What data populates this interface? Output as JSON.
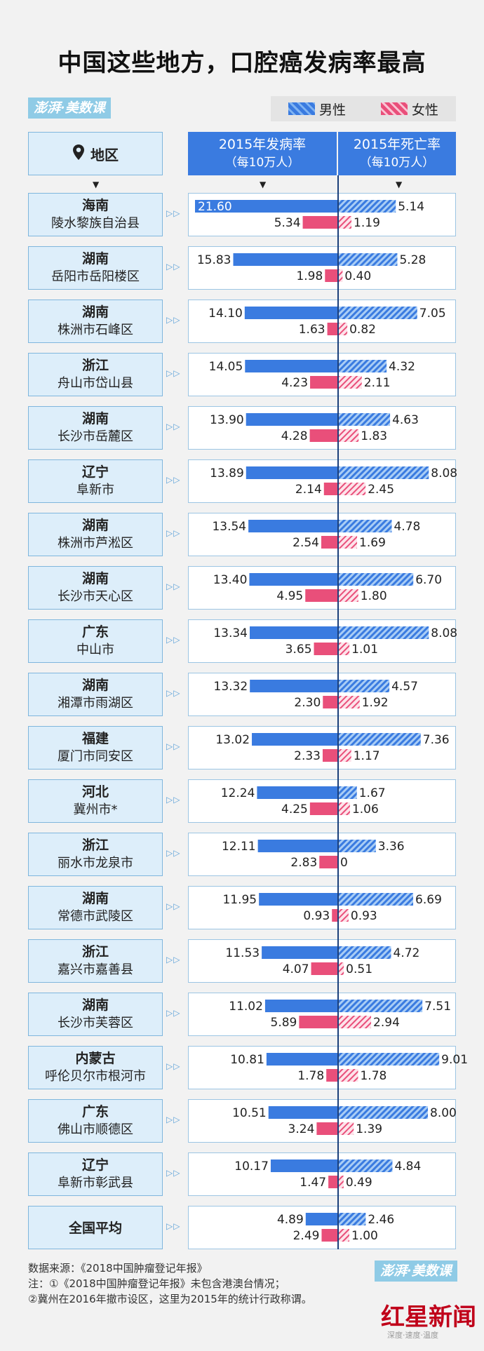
{
  "title": "中国这些地方，口腔癌发病率最高",
  "brand": "澎湃·美数课",
  "legend": {
    "male": "男性",
    "female": "女性"
  },
  "header": {
    "region": "地区",
    "incidence": "2015年发病率",
    "incidence_unit": "（每10万人）",
    "mortality": "2015年死亡率",
    "mortality_unit": "（每10万人）"
  },
  "colors": {
    "male": "#3a7be0",
    "female": "#e94f7a",
    "header_bg": "#3a7be0",
    "region_bg": "#ddeefa"
  },
  "chart_data": {
    "type": "bar",
    "title": "中国这些地方，口腔癌发病率最高",
    "series": [
      {
        "name": "2015年发病率 男性"
      },
      {
        "name": "2015年发病率 女性"
      },
      {
        "name": "2015年死亡率 男性"
      },
      {
        "name": "2015年死亡率 女性"
      }
    ],
    "rows": [
      {
        "province": "海南",
        "city": "陵水黎族自治县",
        "inc_m": 21.6,
        "inc_f": 5.34,
        "mort_m": 5.14,
        "mort_f": 1.19,
        "inc_m_label": "21.60",
        "inc_f_label": "5.34",
        "mort_m_label": "5.14",
        "mort_f_label": "1.19"
      },
      {
        "province": "湖南",
        "city": "岳阳市岳阳楼区",
        "inc_m": 15.83,
        "inc_f": 1.98,
        "mort_m": 5.28,
        "mort_f": 0.4,
        "inc_m_label": "15.83",
        "inc_f_label": "1.98",
        "mort_m_label": "5.28",
        "mort_f_label": "0.40"
      },
      {
        "province": "湖南",
        "city": "株洲市石峰区",
        "inc_m": 14.1,
        "inc_f": 1.63,
        "mort_m": 7.05,
        "mort_f": 0.82,
        "inc_m_label": "14.10",
        "inc_f_label": "1.63",
        "mort_m_label": "7.05",
        "mort_f_label": "0.82"
      },
      {
        "province": "浙江",
        "city": "舟山市岱山县",
        "inc_m": 14.05,
        "inc_f": 4.23,
        "mort_m": 4.32,
        "mort_f": 2.11,
        "inc_m_label": "14.05",
        "inc_f_label": "4.23",
        "mort_m_label": "4.32",
        "mort_f_label": "2.11"
      },
      {
        "province": "湖南",
        "city": "长沙市岳麓区",
        "inc_m": 13.9,
        "inc_f": 4.28,
        "mort_m": 4.63,
        "mort_f": 1.83,
        "inc_m_label": "13.90",
        "inc_f_label": "4.28",
        "mort_m_label": "4.63",
        "mort_f_label": "1.83"
      },
      {
        "province": "辽宁",
        "city": "阜新市",
        "inc_m": 13.89,
        "inc_f": 2.14,
        "mort_m": 8.08,
        "mort_f": 2.45,
        "inc_m_label": "13.89",
        "inc_f_label": "2.14",
        "mort_m_label": "8.08",
        "mort_f_label": "2.45"
      },
      {
        "province": "湖南",
        "city": "株洲市芦淞区",
        "inc_m": 13.54,
        "inc_f": 2.54,
        "mort_m": 4.78,
        "mort_f": 1.69,
        "inc_m_label": "13.54",
        "inc_f_label": "2.54",
        "mort_m_label": "4.78",
        "mort_f_label": "1.69"
      },
      {
        "province": "湖南",
        "city": "长沙市天心区",
        "inc_m": 13.4,
        "inc_f": 4.95,
        "mort_m": 6.7,
        "mort_f": 1.8,
        "inc_m_label": "13.40",
        "inc_f_label": "4.95",
        "mort_m_label": "6.70",
        "mort_f_label": "1.80"
      },
      {
        "province": "广东",
        "city": "中山市",
        "inc_m": 13.34,
        "inc_f": 3.65,
        "mort_m": 8.08,
        "mort_f": 1.01,
        "inc_m_label": "13.34",
        "inc_f_label": "3.65",
        "mort_m_label": "8.08",
        "mort_f_label": "1.01"
      },
      {
        "province": "湖南",
        "city": "湘潭市雨湖区",
        "inc_m": 13.32,
        "inc_f": 2.3,
        "mort_m": 4.57,
        "mort_f": 1.92,
        "inc_m_label": "13.32",
        "inc_f_label": "2.30",
        "mort_m_label": "4.57",
        "mort_f_label": "1.92"
      },
      {
        "province": "福建",
        "city": "厦门市同安区",
        "inc_m": 13.02,
        "inc_f": 2.33,
        "mort_m": 7.36,
        "mort_f": 1.17,
        "inc_m_label": "13.02",
        "inc_f_label": "2.33",
        "mort_m_label": "7.36",
        "mort_f_label": "1.17"
      },
      {
        "province": "河北",
        "city": "冀州市*",
        "inc_m": 12.24,
        "inc_f": 4.25,
        "mort_m": 1.67,
        "mort_f": 1.06,
        "inc_m_label": "12.24",
        "inc_f_label": "4.25",
        "mort_m_label": "1.67",
        "mort_f_label": "1.06"
      },
      {
        "province": "浙江",
        "city": "丽水市龙泉市",
        "inc_m": 12.11,
        "inc_f": 2.83,
        "mort_m": 3.36,
        "mort_f": 0,
        "inc_m_label": "12.11",
        "inc_f_label": "2.83",
        "mort_m_label": "3.36",
        "mort_f_label": "0"
      },
      {
        "province": "湖南",
        "city": "常德市武陵区",
        "inc_m": 11.95,
        "inc_f": 0.93,
        "mort_m": 6.69,
        "mort_f": 0.93,
        "inc_m_label": "11.95",
        "inc_f_label": "0.93",
        "mort_m_label": "6.69",
        "mort_f_label": "0.93"
      },
      {
        "province": "浙江",
        "city": "嘉兴市嘉善县",
        "inc_m": 11.53,
        "inc_f": 4.07,
        "mort_m": 4.72,
        "mort_f": 0.51,
        "inc_m_label": "11.53",
        "inc_f_label": "4.07",
        "mort_m_label": "4.72",
        "mort_f_label": "0.51"
      },
      {
        "province": "湖南",
        "city": "长沙市芙蓉区",
        "inc_m": 11.02,
        "inc_f": 5.89,
        "mort_m": 7.51,
        "mort_f": 2.94,
        "inc_m_label": "11.02",
        "inc_f_label": "5.89",
        "mort_m_label": "7.51",
        "mort_f_label": "2.94"
      },
      {
        "province": "内蒙古",
        "city": "呼伦贝尔市根河市",
        "inc_m": 10.81,
        "inc_f": 1.78,
        "mort_m": 9.01,
        "mort_f": 1.78,
        "inc_m_label": "10.81",
        "inc_f_label": "1.78",
        "mort_m_label": "9.01",
        "mort_f_label": "1.78"
      },
      {
        "province": "广东",
        "city": "佛山市顺德区",
        "inc_m": 10.51,
        "inc_f": 3.24,
        "mort_m": 8.0,
        "mort_f": 1.39,
        "inc_m_label": "10.51",
        "inc_f_label": "3.24",
        "mort_m_label": "8.00",
        "mort_f_label": "1.39"
      },
      {
        "province": "辽宁",
        "city": "阜新市彰武县",
        "inc_m": 10.17,
        "inc_f": 1.47,
        "mort_m": 4.84,
        "mort_f": 0.49,
        "inc_m_label": "10.17",
        "inc_f_label": "1.47",
        "mort_m_label": "4.84",
        "mort_f_label": "0.49"
      },
      {
        "province": "全国平均",
        "city": "",
        "inc_m": 4.89,
        "inc_f": 2.49,
        "mort_m": 2.46,
        "mort_f": 1.0,
        "inc_m_label": "4.89",
        "inc_f_label": "2.49",
        "mort_m_label": "2.46",
        "mort_f_label": "1.00"
      }
    ]
  },
  "notes": {
    "source": "数据来源：《2018中国肿瘤登记年报》",
    "note1": "注：①《2018中国肿瘤登记年报》未包含港澳台情况；",
    "note2": "②冀州在2016年撤市设区，这里为2015年的统计行政称谓。"
  },
  "footer_logo": "红星新闻",
  "watermark": "深度·速度·温度"
}
